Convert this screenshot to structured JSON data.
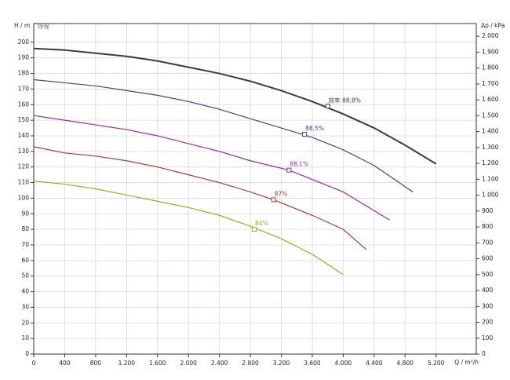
{
  "chart_data": {
    "type": "line",
    "ylabel": "H / m",
    "ylabel_sub": "扬程",
    "y2label": "Δp / kPa",
    "xlabel": "Q / m³/h",
    "xlim": [
      0,
      5720
    ],
    "ylim": [
      0,
      212
    ],
    "y2lim": [
      0,
      2080
    ],
    "grid": true,
    "xticks": [
      0,
      400,
      800,
      {
        "value": 1200,
        "label": "1.200"
      },
      {
        "value": 1600,
        "label": "1.600"
      },
      {
        "value": 2000,
        "label": "2.000"
      },
      {
        "value": 2400,
        "label": "2.400"
      },
      {
        "value": 2800,
        "label": "2.800"
      },
      {
        "value": 3200,
        "label": "3.200"
      },
      {
        "value": 3600,
        "label": "3.600"
      },
      {
        "value": 4000,
        "label": "4.000"
      },
      {
        "value": 4400,
        "label": "4.400"
      },
      {
        "value": 4800,
        "label": "4.800"
      },
      {
        "value": 5200,
        "label": "5.200"
      }
    ],
    "yticks": [
      0,
      10,
      20,
      30,
      40,
      50,
      60,
      70,
      80,
      90,
      100,
      110,
      120,
      130,
      140,
      150,
      160,
      170,
      180,
      190,
      200
    ],
    "y2ticks": [
      0,
      100,
      200,
      300,
      400,
      500,
      600,
      700,
      800,
      900,
      {
        "value": 1000,
        "label": "1.000"
      },
      {
        "value": 1100,
        "label": "1.100"
      },
      {
        "value": 1200,
        "label": "1.200"
      },
      {
        "value": 1300,
        "label": "1.300"
      },
      {
        "value": 1400,
        "label": "1.400"
      },
      {
        "value": 1500,
        "label": "1.500"
      },
      {
        "value": 1600,
        "label": "1.600"
      },
      {
        "value": 1700,
        "label": "1.700"
      },
      {
        "value": 1800,
        "label": "1.800"
      },
      {
        "value": 1900,
        "label": "1.900"
      },
      {
        "value": 2000,
        "label": "2.000"
      }
    ],
    "series": [
      {
        "color": "#3c3c3c",
        "x": [
          0,
          400,
          800,
          1200,
          1600,
          2000,
          2400,
          2800,
          3200,
          3600,
          4000,
          4400,
          4800,
          5200
        ],
        "values": [
          196,
          195,
          193,
          191,
          188,
          184,
          180,
          175,
          169,
          162,
          154,
          145,
          134,
          122
        ],
        "point": {
          "x": 3800,
          "y": 159,
          "label": "效率 88,8%"
        }
      },
      {
        "color": "#56398c",
        "x": [
          0,
          400,
          800,
          1200,
          1600,
          2000,
          2400,
          2800,
          3200,
          3600,
          4000,
          4400,
          4900
        ],
        "values": [
          176,
          174,
          172,
          169,
          166,
          162,
          157,
          151,
          145,
          139,
          131,
          121,
          104
        ],
        "point": {
          "x": 3500,
          "y": 141,
          "label": "88,5%"
        }
      },
      {
        "color": "#9a2a9a",
        "x": [
          0,
          400,
          800,
          1200,
          1600,
          2000,
          2400,
          2800,
          3300,
          3600,
          4000,
          4600
        ],
        "values": [
          153,
          150,
          147,
          144,
          140,
          135,
          130,
          124,
          118,
          112,
          104,
          86
        ],
        "point": {
          "x": 3300,
          "y": 118,
          "label": "88,1%"
        }
      },
      {
        "color": "#a0403a",
        "x": [
          0,
          400,
          800,
          1200,
          1600,
          2000,
          2400,
          2800,
          3100,
          3600,
          4000,
          4300
        ],
        "values": [
          133,
          129,
          127,
          124,
          120,
          115,
          110,
          104,
          99,
          89,
          80,
          67
        ],
        "point": {
          "x": 3100,
          "y": 99,
          "label": "87%"
        }
      },
      {
        "color": "#9aaa2a",
        "x": [
          0,
          400,
          800,
          1200,
          1600,
          2000,
          2400,
          2800,
          3200,
          3600,
          4000
        ],
        "values": [
          111,
          109,
          106,
          102,
          98,
          94,
          89,
          82,
          74,
          64,
          51
        ],
        "point": {
          "x": 2850,
          "y": 80,
          "label": "84%"
        }
      }
    ]
  }
}
